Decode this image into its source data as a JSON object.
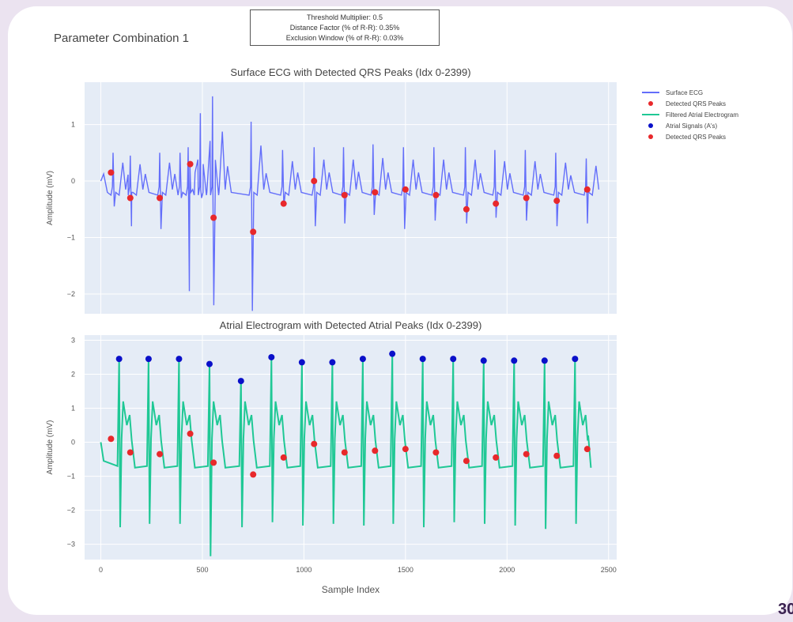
{
  "figure": {
    "title": "Parameter Combination 1",
    "params": [
      "Threshold Multiplier: 0.5",
      "Distance Factor (% of R-R): 0.35%",
      "Exclusion Window (% of R-R): 0.03%"
    ],
    "page_number": "30"
  },
  "legend": [
    {
      "label": "Surface ECG",
      "kind": "line",
      "color": "#636efa"
    },
    {
      "label": "Detected QRS Peaks",
      "kind": "marker",
      "color": "#e8282b"
    },
    {
      "label": "Filtered Atrial Electrogram",
      "kind": "line",
      "color": "#1fc895"
    },
    {
      "label": "Atrial Signals (A's)",
      "kind": "marker",
      "color": "#0a10c9"
    },
    {
      "label": "Detected QRS Peaks",
      "kind": "marker",
      "color": "#e8282b"
    }
  ],
  "chart_data": [
    {
      "type": "line",
      "title": "Surface ECG with Detected QRS Peaks (Idx 0-2399)",
      "xlabel": "",
      "ylabel": "Amplitude (mV)",
      "xlim": [
        -80,
        2540
      ],
      "ylim": [
        -2.35,
        1.75
      ],
      "yticks": [
        -2,
        -1,
        0,
        1
      ],
      "grid": true,
      "legend_position": "right",
      "colors": {
        "signal": "#636efa",
        "peaks": "#e8282b"
      },
      "beats": [
        {
          "x": 60,
          "amp": 0.5,
          "neg": -0.45
        },
        {
          "x": 145,
          "amp": 0.45,
          "neg": -0.8
        },
        {
          "x": 290,
          "amp": 0.5,
          "neg": -0.85
        },
        {
          "x": 390,
          "amp": 0.5,
          "neg": -0.3
        },
        {
          "x": 430,
          "amp": 0.6,
          "neg": -1.95
        },
        {
          "x": 490,
          "amp": 1.2,
          "neg": -0.3
        },
        {
          "x": 550,
          "amp": 1.5,
          "neg": -2.2
        },
        {
          "x": 740,
          "amp": 1.05,
          "neg": -2.3
        },
        {
          "x": 895,
          "amp": 0.55,
          "neg": -0.45
        },
        {
          "x": 1050,
          "amp": 0.6,
          "neg": -0.8
        },
        {
          "x": 1195,
          "amp": 0.6,
          "neg": -0.75
        },
        {
          "x": 1340,
          "amp": 0.65,
          "neg": -0.6
        },
        {
          "x": 1490,
          "amp": 0.6,
          "neg": -0.85
        },
        {
          "x": 1640,
          "amp": 0.6,
          "neg": -0.7
        },
        {
          "x": 1795,
          "amp": 0.6,
          "neg": -0.75
        },
        {
          "x": 1940,
          "amp": 0.55,
          "neg": -0.65
        },
        {
          "x": 2090,
          "amp": 0.55,
          "neg": -0.7
        },
        {
          "x": 2240,
          "amp": 0.5,
          "neg": -0.8
        },
        {
          "x": 2390,
          "amp": 0.4,
          "neg": -0.75
        }
      ],
      "qrs_peaks": [
        {
          "x": 50,
          "y": 0.15
        },
        {
          "x": 145,
          "y": -0.3
        },
        {
          "x": 290,
          "y": -0.3
        },
        {
          "x": 440,
          "y": 0.3
        },
        {
          "x": 555,
          "y": -0.65
        },
        {
          "x": 750,
          "y": -0.9
        },
        {
          "x": 900,
          "y": -0.4
        },
        {
          "x": 1050,
          "y": 0.0
        },
        {
          "x": 1200,
          "y": -0.25
        },
        {
          "x": 1350,
          "y": -0.2
        },
        {
          "x": 1500,
          "y": -0.15
        },
        {
          "x": 1650,
          "y": -0.25
        },
        {
          "x": 1800,
          "y": -0.5
        },
        {
          "x": 1945,
          "y": -0.4
        },
        {
          "x": 2095,
          "y": -0.3
        },
        {
          "x": 2245,
          "y": -0.35
        },
        {
          "x": 2395,
          "y": -0.15
        }
      ]
    },
    {
      "type": "line",
      "title": "Atrial Electrogram with Detected Atrial Peaks (Idx 0-2399)",
      "xlabel": "Sample Index",
      "ylabel": "Amplitude (mV)",
      "xlim": [
        -80,
        2540
      ],
      "ylim": [
        -3.45,
        3.15
      ],
      "xticks": [
        0,
        500,
        1000,
        1500,
        2000,
        2500
      ],
      "yticks": [
        -3,
        -2,
        -1,
        0,
        1,
        2,
        3
      ],
      "grid": true,
      "colors": {
        "signal": "#1fc895",
        "atrial": "#0a10c9",
        "peaks": "#e8282b"
      },
      "beats": [
        {
          "x": 90,
          "amp": 2.45,
          "neg": -2.5
        },
        {
          "x": 235,
          "amp": 2.45,
          "neg": -2.4
        },
        {
          "x": 385,
          "amp": 2.45,
          "neg": -2.4
        },
        {
          "x": 535,
          "amp": 2.3,
          "neg": -3.35
        },
        {
          "x": 690,
          "amp": 1.85,
          "neg": -2.5
        },
        {
          "x": 840,
          "amp": 2.45,
          "neg": -2.35
        },
        {
          "x": 990,
          "amp": 2.35,
          "neg": -2.45
        },
        {
          "x": 1140,
          "amp": 2.35,
          "neg": -2.4
        },
        {
          "x": 1290,
          "amp": 2.45,
          "neg": -2.45
        },
        {
          "x": 1435,
          "amp": 2.6,
          "neg": -2.4
        },
        {
          "x": 1585,
          "amp": 2.45,
          "neg": -2.5
        },
        {
          "x": 1735,
          "amp": 2.45,
          "neg": -2.35
        },
        {
          "x": 1885,
          "amp": 2.4,
          "neg": -2.4
        },
        {
          "x": 2035,
          "amp": 2.4,
          "neg": -2.45
        },
        {
          "x": 2185,
          "amp": 2.4,
          "neg": -2.55
        },
        {
          "x": 2335,
          "amp": 2.45,
          "neg": -2.4
        }
      ],
      "atrial_peaks": [
        {
          "x": 90,
          "y": 2.45
        },
        {
          "x": 235,
          "y": 2.45
        },
        {
          "x": 385,
          "y": 2.45
        },
        {
          "x": 535,
          "y": 2.3
        },
        {
          "x": 690,
          "y": 1.8
        },
        {
          "x": 840,
          "y": 2.5
        },
        {
          "x": 990,
          "y": 2.35
        },
        {
          "x": 1140,
          "y": 2.35
        },
        {
          "x": 1290,
          "y": 2.45
        },
        {
          "x": 1435,
          "y": 2.6
        },
        {
          "x": 1585,
          "y": 2.45
        },
        {
          "x": 1735,
          "y": 2.45
        },
        {
          "x": 1885,
          "y": 2.4
        },
        {
          "x": 2035,
          "y": 2.4
        },
        {
          "x": 2185,
          "y": 2.4
        },
        {
          "x": 2335,
          "y": 2.45
        }
      ],
      "qrs_peaks": [
        {
          "x": 50,
          "y": 0.1
        },
        {
          "x": 145,
          "y": -0.3
        },
        {
          "x": 290,
          "y": -0.35
        },
        {
          "x": 440,
          "y": 0.25
        },
        {
          "x": 555,
          "y": -0.6
        },
        {
          "x": 750,
          "y": -0.95
        },
        {
          "x": 900,
          "y": -0.45
        },
        {
          "x": 1050,
          "y": -0.05
        },
        {
          "x": 1200,
          "y": -0.3
        },
        {
          "x": 1350,
          "y": -0.25
        },
        {
          "x": 1500,
          "y": -0.2
        },
        {
          "x": 1650,
          "y": -0.3
        },
        {
          "x": 1800,
          "y": -0.55
        },
        {
          "x": 1945,
          "y": -0.45
        },
        {
          "x": 2095,
          "y": -0.35
        },
        {
          "x": 2245,
          "y": -0.4
        },
        {
          "x": 2395,
          "y": -0.2
        }
      ]
    }
  ]
}
